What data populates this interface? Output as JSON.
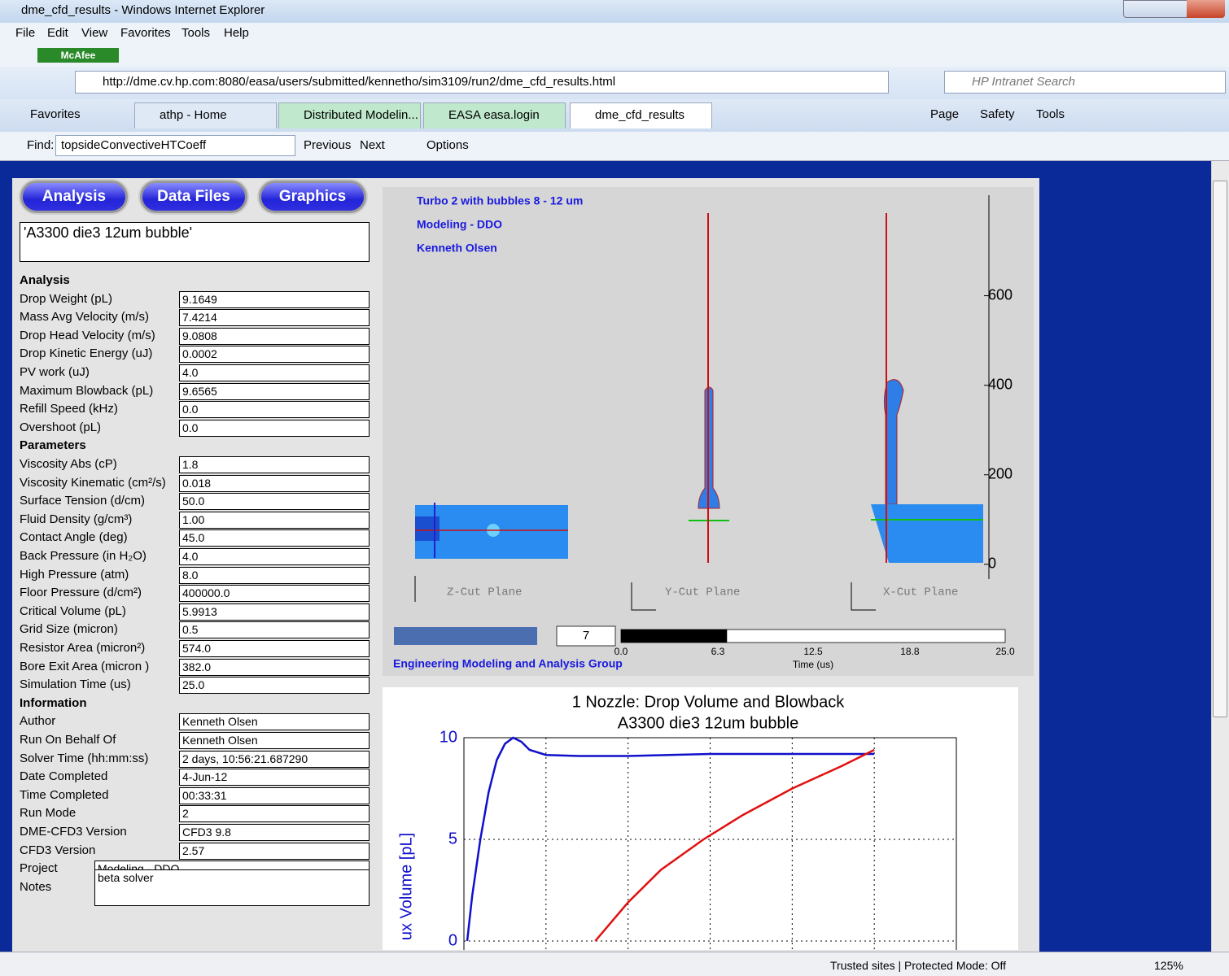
{
  "window": {
    "title": "dme_cfd_results - Windows Internet Explorer"
  },
  "menu": [
    "File",
    "Edit",
    "View",
    "Favorites",
    "Tools",
    "Help"
  ],
  "addon": "McAfee",
  "address": "http://dme.cv.hp.com:8080/easa/users/submitted/kennetho/sim3109/run2/dme_cfd_results.html",
  "search_placeholder": "HP Intranet Search",
  "favorites": "Favorites",
  "tabs": [
    "athp - Home",
    "Distributed Modelin...",
    "EASA easa.login",
    "dme_cfd_results"
  ],
  "commands": [
    "Page",
    "Safety",
    "Tools"
  ],
  "find": {
    "label": "Find:",
    "query": "topsideConvectiveHTCoeff",
    "previous": "Previous",
    "next": "Next",
    "options": "Options"
  },
  "page": {
    "nav": [
      "Analysis",
      "Data Files",
      "Graphics"
    ],
    "run_title": "'A3300 die3 12um bubble'",
    "sections": [
      {
        "heading": "Analysis",
        "fields": [
          {
            "label": "Drop Weight (pL)",
            "value": "9.1649"
          },
          {
            "label": "Mass Avg Velocity (m/s)",
            "value": "7.4214"
          },
          {
            "label": "Drop Head Velocity (m/s)",
            "value": "9.0808"
          },
          {
            "label": "Drop Kinetic Energy (uJ)",
            "value": "0.0002"
          },
          {
            "label": "PV work (uJ)",
            "value": "4.0"
          },
          {
            "label": "Maximum Blowback (pL)",
            "value": "9.6565"
          },
          {
            "label": "Refill Speed (kHz)",
            "value": "0.0"
          },
          {
            "label": "Overshoot (pL)",
            "value": "0.0"
          }
        ]
      },
      {
        "heading": "Parameters",
        "fields": [
          {
            "label": "Viscosity Abs (cP)",
            "value": "1.8"
          },
          {
            "label": "Viscosity Kinematic (cm²/s)",
            "value": "0.018"
          },
          {
            "label": "Surface Tension (d/cm)",
            "value": "50.0"
          },
          {
            "label": "Fluid Density (g/cm³)",
            "value": "1.00"
          },
          {
            "label": "Contact Angle (deg)",
            "value": "45.0"
          },
          {
            "label": "Back Pressure (in H₂O)",
            "value": "4.0"
          },
          {
            "label": "High Pressure (atm)",
            "value": "8.0"
          },
          {
            "label": "Floor Pressure (d/cm²)",
            "value": "400000.0"
          },
          {
            "label": "Critical Volume (pL)",
            "value": "5.9913"
          },
          {
            "label": "Grid Size (micron)",
            "value": "0.5"
          },
          {
            "label": "Resistor Area (micron²)",
            "value": "574.0"
          },
          {
            "label": "Bore Exit Area (micron )",
            "value": "382.0"
          },
          {
            "label": "Simulation Time (us)",
            "value": "25.0"
          }
        ]
      },
      {
        "heading": "Information",
        "fields": [
          {
            "label": "Author",
            "value": "Kenneth Olsen"
          },
          {
            "label": "Run On Behalf Of",
            "value": "Kenneth Olsen"
          },
          {
            "label": "Solver Time (hh:mm:ss)",
            "value": "2 days, 10:56:21.687290"
          },
          {
            "label": "Date Completed",
            "value": "4-Jun-12"
          },
          {
            "label": "Time Completed",
            "value": "00:33:31"
          },
          {
            "label": "Run Mode",
            "value": "2"
          },
          {
            "label": "DME-CFD3 Version",
            "value": "CFD3 9.8"
          },
          {
            "label": "CFD3 Version",
            "value": "2.57"
          }
        ]
      }
    ],
    "project": {
      "label": "Project",
      "value": "Modeling - DDO"
    },
    "notes": {
      "label": "Notes",
      "value": "beta solver"
    }
  },
  "viewer": {
    "captions": [
      "Turbo 2 with bubbles 8 - 12 um",
      "Modeling - DDO",
      "Kenneth Olsen"
    ],
    "planes": [
      "Z-Cut Plane",
      "Y-Cut Plane",
      "X-Cut Plane"
    ],
    "scale_lim": [
      -33,
      790
    ],
    "scale_ticks": [
      0,
      200,
      400,
      600
    ],
    "frame": "7",
    "timeline": {
      "xlim": [
        0,
        25
      ],
      "ticks": [
        {
          "value": 0,
          "label": "0.0"
        },
        6.3,
        12.5,
        18.8,
        {
          "value": 25,
          "label": "25.0"
        }
      ],
      "label": "Time (us)",
      "position": 6.9
    },
    "footer": "Engineering Modeling and Analysis Group"
  },
  "chart_data": {
    "type": "line",
    "title": "1 Nozzle: Drop Volume and Blowback",
    "subtitle": "A3300 die3 12um bubble",
    "y_label": "ux Volume [pL]",
    "xlim": [
      0,
      30
    ],
    "xticks": [
      0,
      5,
      10,
      15,
      20,
      25,
      30
    ],
    "ylim": [
      0,
      10
    ],
    "yticks": [
      0,
      5,
      10
    ],
    "grid": true,
    "series": [
      {
        "color": "#1010cc",
        "x": [
          0.2,
          0.5,
          1,
          1.5,
          2,
          2.5,
          3,
          3.5,
          4,
          5,
          7,
          10,
          15,
          20,
          25
        ],
        "values": [
          0,
          2.2,
          5,
          7.3,
          8.9,
          9.7,
          10,
          9.8,
          9.4,
          9.15,
          9.1,
          9.1,
          9.2,
          9.2,
          9.2
        ]
      },
      {
        "color": "#e01010",
        "x": [
          8,
          10,
          12,
          14.6,
          17,
          20,
          23,
          25
        ],
        "values": [
          0,
          1.9,
          3.5,
          5,
          6.2,
          7.5,
          8.6,
          9.4
        ]
      }
    ]
  },
  "status": {
    "text": "Trusted sites | Protected Mode: Off",
    "zoom": "125%"
  }
}
